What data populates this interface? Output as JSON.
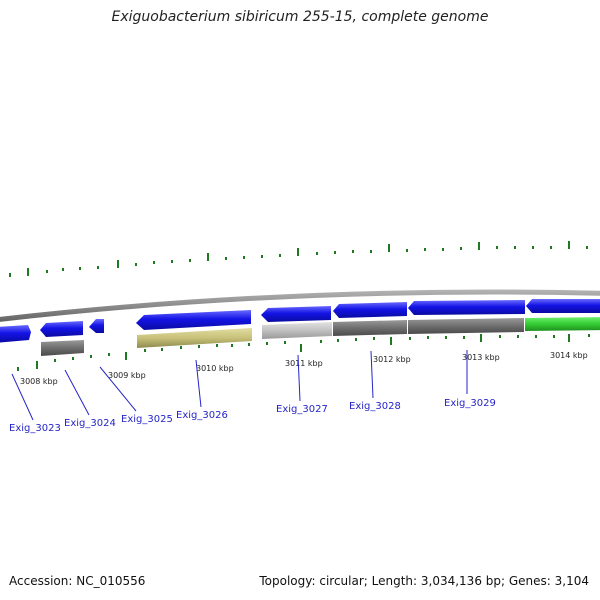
{
  "title": "Exiguobacterium sibiricum 255-15, complete genome",
  "accession": "Accession: NC_010556",
  "topology": "Topology: circular; Length: 3,034,136 bp; Genes: 3,104",
  "scale_labels": [
    "3008 kbp",
    "3009 kbp",
    "3010 kbp",
    "3011 kbp",
    "3012 kbp",
    "3013 kbp",
    "3014 kbp"
  ],
  "genes": [
    {
      "name": "Exig_3023",
      "direction": "forward",
      "color": "#1414e6"
    },
    {
      "name": "Exig_3024",
      "direction": "reverse",
      "color": "#1414e6"
    },
    {
      "name": "Exig_3025",
      "direction": "reverse",
      "color": "#1414e6"
    },
    {
      "name": "Exig_3026",
      "direction": "reverse",
      "color": "#1414e6"
    },
    {
      "name": "Exig_3027",
      "direction": "reverse",
      "color": "#1414e6"
    },
    {
      "name": "Exig_3028",
      "direction": "reverse",
      "color": "#1414e6"
    },
    {
      "name": "Exig_3029",
      "direction": "reverse",
      "color": "#1414e6"
    }
  ],
  "colors": {
    "gene_blue": "#1414e6",
    "backbone": "#8a8a8a",
    "gc_tick": "#1f7a1f",
    "cog_dark": "#707070",
    "cog_light": "#c0c0c0",
    "cog_olive": "#c7c17a",
    "cog_green": "#33cc33",
    "label": "#2525c8"
  }
}
